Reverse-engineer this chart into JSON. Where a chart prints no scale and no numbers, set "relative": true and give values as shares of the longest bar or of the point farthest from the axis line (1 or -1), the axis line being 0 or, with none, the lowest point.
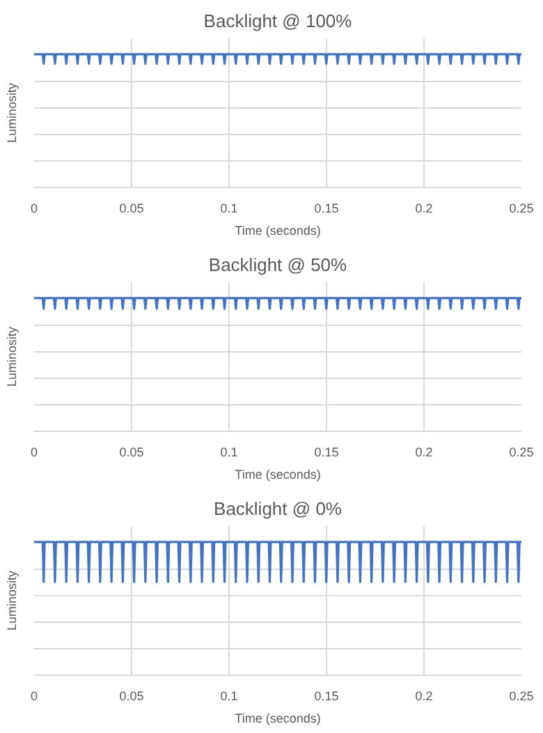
{
  "chart_data": [
    {
      "type": "line",
      "title": "Backlight @ 100%",
      "xlabel": "Time (seconds)",
      "ylabel": "Luminosity",
      "relative": true,
      "xlim": [
        0,
        0.25
      ],
      "xticks": [
        0,
        0.05,
        0.1,
        0.15,
        0.2,
        0.25
      ],
      "grid": true,
      "tick_labels": "x",
      "x": [
        0,
        0.0044,
        0.0049,
        0.0054,
        0.0102,
        0.0107,
        0.0112,
        0.016,
        0.0165,
        0.017,
        0.0218,
        0.0223,
        0.0228,
        0.0276,
        0.0281,
        0.0286,
        0.0334,
        0.0339,
        0.0344,
        0.0392,
        0.0397,
        0.0402,
        0.045,
        0.0455,
        0.046,
        0.0508,
        0.0513,
        0.0518,
        0.0566,
        0.0571,
        0.0576,
        0.0624,
        0.0629,
        0.0634,
        0.0682,
        0.0687,
        0.0692,
        0.074,
        0.0745,
        0.075,
        0.0798,
        0.0803,
        0.0808,
        0.0856,
        0.0861,
        0.0866,
        0.0914,
        0.0919,
        0.0924,
        0.0972,
        0.0977,
        0.0982,
        0.103,
        0.1035,
        0.104,
        0.1088,
        0.1093,
        0.1098,
        0.1146,
        0.1151,
        0.1156,
        0.1204,
        0.1209,
        0.1214,
        0.1262,
        0.1267,
        0.1272,
        0.132,
        0.1325,
        0.133,
        0.1378,
        0.1383,
        0.1388,
        0.1436,
        0.1441,
        0.1446,
        0.1494,
        0.1499,
        0.1504,
        0.1552,
        0.1557,
        0.1562,
        0.161,
        0.1615,
        0.162,
        0.1668,
        0.1673,
        0.1678,
        0.1726,
        0.1731,
        0.1736,
        0.1784,
        0.1789,
        0.1794,
        0.1842,
        0.1847,
        0.1852,
        0.19,
        0.1905,
        0.191,
        0.1958,
        0.1963,
        0.1968,
        0.2016,
        0.2021,
        0.2026,
        0.2074,
        0.2079,
        0.2084,
        0.2132,
        0.2137,
        0.2142,
        0.219,
        0.2195,
        0.22,
        0.2248,
        0.2253,
        0.2258,
        0.2306,
        0.2311,
        0.2316,
        0.2364,
        0.2369,
        0.2374,
        0.2422,
        0.2427,
        0.2432,
        0.248,
        0.2485,
        0.249,
        0.25
      ],
      "series": [
        {
          "color": "#4472c4",
          "values": [
            1,
            1,
            0.93,
            1,
            1,
            0.93,
            1,
            1,
            0.93,
            1,
            1,
            0.93,
            1,
            1,
            0.93,
            1,
            1,
            0.93,
            1,
            1,
            0.93,
            1,
            1,
            0.93,
            1,
            1,
            0.93,
            1,
            1,
            0.93,
            1,
            1,
            0.93,
            1,
            1,
            0.93,
            1,
            1,
            0.93,
            1,
            1,
            0.93,
            1,
            1,
            0.93,
            1,
            1,
            0.93,
            1,
            1,
            0.93,
            1,
            1,
            0.93,
            1,
            1,
            0.93,
            1,
            1,
            0.93,
            1,
            1,
            0.93,
            1,
            1,
            0.93,
            1,
            1,
            0.93,
            1,
            1,
            0.93,
            1,
            1,
            0.93,
            1,
            1,
            0.93,
            1,
            1,
            0.93,
            1,
            1,
            0.93,
            1,
            1,
            0.93,
            1,
            1,
            0.93,
            1,
            1,
            0.93,
            1,
            1,
            0.93,
            1,
            1,
            0.93,
            1,
            1,
            0.93,
            1,
            1,
            0.93,
            1,
            1,
            0.93,
            1,
            1,
            0.93,
            1,
            1,
            0.93,
            1,
            1,
            0.93,
            1,
            1,
            0.93,
            1,
            1,
            0.93,
            1,
            1,
            0.93,
            1,
            1,
            0.93,
            1,
            1
          ]
        }
      ]
    },
    {
      "type": "line",
      "title": "Backlight @ 50%",
      "xlabel": "Time (seconds)",
      "ylabel": "Luminosity",
      "relative": true,
      "xlim": [
        0,
        0.25
      ],
      "xticks": [
        0,
        0.05,
        0.1,
        0.15,
        0.2,
        0.25
      ],
      "grid": true,
      "tick_labels": "x",
      "x": [
        0,
        0.0044,
        0.0049,
        0.0054,
        0.0102,
        0.0107,
        0.0112,
        0.016,
        0.0165,
        0.017,
        0.0218,
        0.0223,
        0.0228,
        0.0276,
        0.0281,
        0.0286,
        0.0334,
        0.0339,
        0.0344,
        0.0392,
        0.0397,
        0.0402,
        0.045,
        0.0455,
        0.046,
        0.0508,
        0.0513,
        0.0518,
        0.0566,
        0.0571,
        0.0576,
        0.0624,
        0.0629,
        0.0634,
        0.0682,
        0.0687,
        0.0692,
        0.074,
        0.0745,
        0.075,
        0.0798,
        0.0803,
        0.0808,
        0.0856,
        0.0861,
        0.0866,
        0.0914,
        0.0919,
        0.0924,
        0.0972,
        0.0977,
        0.0982,
        0.103,
        0.1035,
        0.104,
        0.1088,
        0.1093,
        0.1098,
        0.1146,
        0.1151,
        0.1156,
        0.1204,
        0.1209,
        0.1214,
        0.1262,
        0.1267,
        0.1272,
        0.132,
        0.1325,
        0.133,
        0.1378,
        0.1383,
        0.1388,
        0.1436,
        0.1441,
        0.1446,
        0.1494,
        0.1499,
        0.1504,
        0.1552,
        0.1557,
        0.1562,
        0.161,
        0.1615,
        0.162,
        0.1668,
        0.1673,
        0.1678,
        0.1726,
        0.1731,
        0.1736,
        0.1784,
        0.1789,
        0.1794,
        0.1842,
        0.1847,
        0.1852,
        0.19,
        0.1905,
        0.191,
        0.1958,
        0.1963,
        0.1968,
        0.2016,
        0.2021,
        0.2026,
        0.2074,
        0.2079,
        0.2084,
        0.2132,
        0.2137,
        0.2142,
        0.219,
        0.2195,
        0.22,
        0.2248,
        0.2253,
        0.2258,
        0.2306,
        0.2311,
        0.2316,
        0.2364,
        0.2369,
        0.2374,
        0.2422,
        0.2427,
        0.2432,
        0.248,
        0.2485,
        0.249,
        0.25
      ],
      "series": [
        {
          "color": "#4472c4",
          "values": [
            1,
            1,
            0.92,
            1,
            1,
            0.92,
            1,
            1,
            0.92,
            1,
            1,
            0.92,
            1,
            1,
            0.92,
            1,
            1,
            0.92,
            1,
            1,
            0.92,
            1,
            1,
            0.92,
            1,
            1,
            0.92,
            1,
            1,
            0.92,
            1,
            1,
            0.92,
            1,
            1,
            0.92,
            1,
            1,
            0.92,
            1,
            1,
            0.92,
            1,
            1,
            0.92,
            1,
            1,
            0.92,
            1,
            1,
            0.92,
            1,
            1,
            0.92,
            1,
            1,
            0.92,
            1,
            1,
            0.92,
            1,
            1,
            0.92,
            1,
            1,
            0.92,
            1,
            1,
            0.92,
            1,
            1,
            0.92,
            1,
            1,
            0.92,
            1,
            1,
            0.92,
            1,
            1,
            0.92,
            1,
            1,
            0.92,
            1,
            1,
            0.92,
            1,
            1,
            0.92,
            1,
            1,
            0.92,
            1,
            1,
            0.92,
            1,
            1,
            0.92,
            1,
            1,
            0.92,
            1,
            1,
            0.92,
            1,
            1,
            0.92,
            1,
            1,
            0.92,
            1,
            1,
            0.92,
            1,
            1,
            0.92,
            1,
            1,
            0.92,
            1,
            1,
            0.92,
            1,
            1,
            0.92,
            1,
            1,
            0.92,
            1,
            1
          ]
        }
      ]
    },
    {
      "type": "line",
      "title": "Backlight @ 0%",
      "xlabel": "Time (seconds)",
      "ylabel": "Luminosity",
      "relative": true,
      "xlim": [
        0,
        0.25
      ],
      "xticks": [
        0,
        0.05,
        0.1,
        0.15,
        0.2,
        0.25
      ],
      "grid": true,
      "tick_labels": "x",
      "x": [
        0,
        0.0044,
        0.0049,
        0.0054,
        0.0102,
        0.0107,
        0.0112,
        0.016,
        0.0165,
        0.017,
        0.0218,
        0.0223,
        0.0228,
        0.0276,
        0.0281,
        0.0286,
        0.0334,
        0.0339,
        0.0344,
        0.0392,
        0.0397,
        0.0402,
        0.045,
        0.0455,
        0.046,
        0.0508,
        0.0513,
        0.0518,
        0.0566,
        0.0571,
        0.0576,
        0.0624,
        0.0629,
        0.0634,
        0.0682,
        0.0687,
        0.0692,
        0.074,
        0.0745,
        0.075,
        0.0798,
        0.0803,
        0.0808,
        0.0856,
        0.0861,
        0.0866,
        0.0914,
        0.0919,
        0.0924,
        0.0972,
        0.0977,
        0.0982,
        0.103,
        0.1035,
        0.104,
        0.1088,
        0.1093,
        0.1098,
        0.1146,
        0.1151,
        0.1156,
        0.1204,
        0.1209,
        0.1214,
        0.1262,
        0.1267,
        0.1272,
        0.132,
        0.1325,
        0.133,
        0.1378,
        0.1383,
        0.1388,
        0.1436,
        0.1441,
        0.1446,
        0.1494,
        0.1499,
        0.1504,
        0.1552,
        0.1557,
        0.1562,
        0.161,
        0.1615,
        0.162,
        0.1668,
        0.1673,
        0.1678,
        0.1726,
        0.1731,
        0.1736,
        0.1784,
        0.1789,
        0.1794,
        0.1842,
        0.1847,
        0.1852,
        0.19,
        0.1905,
        0.191,
        0.1958,
        0.1963,
        0.1968,
        0.2016,
        0.2021,
        0.2026,
        0.2074,
        0.2079,
        0.2084,
        0.2132,
        0.2137,
        0.2142,
        0.219,
        0.2195,
        0.22,
        0.2248,
        0.2253,
        0.2258,
        0.2306,
        0.2311,
        0.2316,
        0.2364,
        0.2369,
        0.2374,
        0.2422,
        0.2427,
        0.2432,
        0.248,
        0.2485,
        0.249,
        0.25
      ],
      "series": [
        {
          "color": "#4472c4",
          "values": [
            1,
            1,
            0.7,
            1,
            1,
            0.7,
            1,
            1,
            0.7,
            1,
            1,
            0.7,
            1,
            1,
            0.7,
            1,
            1,
            0.7,
            1,
            1,
            0.7,
            1,
            1,
            0.7,
            1,
            1,
            0.7,
            1,
            1,
            0.7,
            1,
            1,
            0.7,
            1,
            1,
            0.7,
            1,
            1,
            0.7,
            1,
            1,
            0.7,
            1,
            1,
            0.7,
            1,
            1,
            0.7,
            1,
            1,
            0.7,
            1,
            1,
            0.7,
            1,
            1,
            0.7,
            1,
            1,
            0.7,
            1,
            1,
            0.7,
            1,
            1,
            0.7,
            1,
            1,
            0.7,
            1,
            1,
            0.7,
            1,
            1,
            0.7,
            1,
            1,
            0.7,
            1,
            1,
            0.7,
            1,
            1,
            0.7,
            1,
            1,
            0.7,
            1,
            1,
            0.7,
            1,
            1,
            0.7,
            1,
            1,
            0.7,
            1,
            1,
            0.7,
            1,
            1,
            0.7,
            1,
            1,
            0.7,
            1,
            1,
            0.7,
            1,
            1,
            0.7,
            1,
            1,
            0.7,
            1,
            1,
            0.7,
            1,
            1,
            0.7,
            1,
            1,
            0.7,
            1,
            1,
            0.7,
            1,
            1,
            0.7,
            1,
            1
          ]
        }
      ]
    }
  ]
}
